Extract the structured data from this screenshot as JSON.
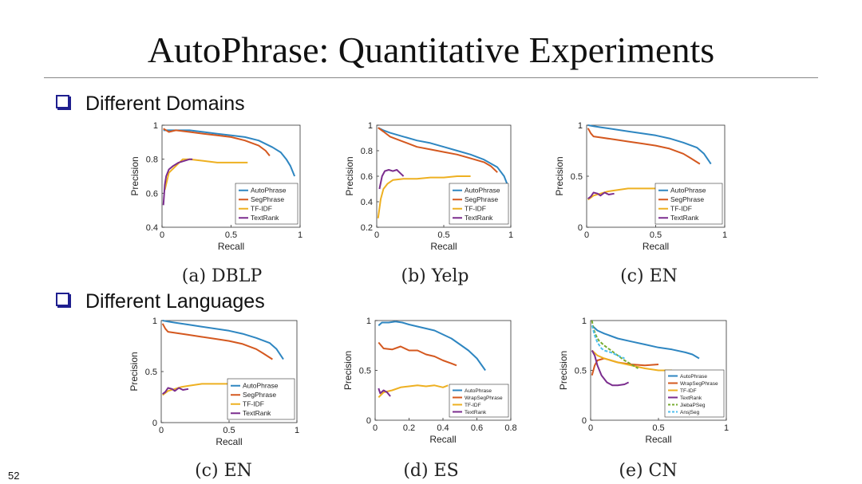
{
  "slide": {
    "title": "AutoPhrase: Quantitative Experiments",
    "section1": "Different Domains",
    "section2": "Different Languages",
    "page_number": "52"
  },
  "captions": [
    "(a) DBLP",
    "(b) Yelp",
    "(c) EN",
    "(c) EN",
    "(d) ES",
    "(e) CN"
  ],
  "colors": {
    "AutoPhrase": "#2e86c1",
    "SegPhrase": "#d4581f",
    "WrapSegPhrase": "#d4581f",
    "TF-IDF": "#eeb021",
    "TextRank": "#7b2d8e",
    "JiebaPSeg": "#77ac30",
    "AnsjSeg": "#4dbeee"
  },
  "chart_data": [
    {
      "type": "line",
      "xlabel": "Recall",
      "ylabel": "Precision",
      "xlim": [
        0,
        1
      ],
      "ylim": [
        0.4,
        1
      ],
      "xticks": [
        "0",
        "0.5",
        "1"
      ],
      "yticks": [
        "0.4",
        "0.6",
        "0.8",
        "1"
      ],
      "legend_position": "bottom-right",
      "series": [
        {
          "name": "AutoPhrase",
          "x": [
            0.01,
            0.1,
            0.2,
            0.3,
            0.4,
            0.5,
            0.6,
            0.7,
            0.8,
            0.86,
            0.9,
            0.93,
            0.96
          ],
          "y": [
            0.97,
            0.97,
            0.97,
            0.96,
            0.95,
            0.94,
            0.93,
            0.91,
            0.87,
            0.84,
            0.8,
            0.76,
            0.7
          ]
        },
        {
          "name": "SegPhrase",
          "x": [
            0.01,
            0.05,
            0.1,
            0.2,
            0.3,
            0.4,
            0.5,
            0.6,
            0.7,
            0.75,
            0.78
          ],
          "y": [
            0.98,
            0.96,
            0.97,
            0.96,
            0.95,
            0.94,
            0.93,
            0.91,
            0.88,
            0.85,
            0.82
          ]
        },
        {
          "name": "TF-IDF",
          "x": [
            0.02,
            0.05,
            0.1,
            0.15,
            0.2,
            0.3,
            0.4,
            0.5,
            0.6,
            0.62
          ],
          "y": [
            0.62,
            0.72,
            0.76,
            0.8,
            0.8,
            0.79,
            0.78,
            0.78,
            0.78,
            0.78
          ]
        },
        {
          "name": "TextRank",
          "x": [
            0.01,
            0.02,
            0.03,
            0.05,
            0.08,
            0.12,
            0.16,
            0.2,
            0.22
          ],
          "y": [
            0.53,
            0.65,
            0.7,
            0.74,
            0.76,
            0.78,
            0.79,
            0.8,
            0.8
          ]
        }
      ]
    },
    {
      "type": "line",
      "xlabel": "Recall",
      "ylabel": "Precision",
      "xlim": [
        0,
        1
      ],
      "ylim": [
        0.2,
        1
      ],
      "xticks": [
        "0",
        "0.5",
        "1"
      ],
      "yticks": [
        "0.2",
        "0.4",
        "0.6",
        "0.8",
        "1"
      ],
      "legend_position": "bottom-right",
      "series": [
        {
          "name": "AutoPhrase",
          "x": [
            0.01,
            0.05,
            0.1,
            0.2,
            0.3,
            0.4,
            0.5,
            0.6,
            0.7,
            0.8,
            0.9,
            0.95,
            0.98
          ],
          "y": [
            0.98,
            0.96,
            0.94,
            0.91,
            0.88,
            0.86,
            0.83,
            0.8,
            0.77,
            0.73,
            0.67,
            0.6,
            0.52
          ]
        },
        {
          "name": "SegPhrase",
          "x": [
            0.01,
            0.05,
            0.1,
            0.2,
            0.3,
            0.4,
            0.5,
            0.6,
            0.7,
            0.8,
            0.85,
            0.9
          ],
          "y": [
            0.98,
            0.95,
            0.91,
            0.87,
            0.83,
            0.81,
            0.79,
            0.77,
            0.74,
            0.71,
            0.68,
            0.63
          ]
        },
        {
          "name": "TF-IDF",
          "x": [
            0.01,
            0.03,
            0.05,
            0.08,
            0.12,
            0.2,
            0.3,
            0.4,
            0.5,
            0.6,
            0.7
          ],
          "y": [
            0.27,
            0.42,
            0.5,
            0.54,
            0.57,
            0.58,
            0.58,
            0.59,
            0.59,
            0.6,
            0.6
          ]
        },
        {
          "name": "TextRank",
          "x": [
            0.02,
            0.04,
            0.06,
            0.09,
            0.12,
            0.15,
            0.18,
            0.2
          ],
          "y": [
            0.5,
            0.6,
            0.64,
            0.65,
            0.64,
            0.65,
            0.62,
            0.6
          ]
        }
      ]
    },
    {
      "type": "line",
      "xlabel": "Recall",
      "ylabel": "Precision",
      "xlim": [
        0,
        1
      ],
      "ylim": [
        0,
        1
      ],
      "xticks": [
        "0",
        "0.5",
        "1"
      ],
      "yticks": [
        "0",
        "0.5",
        "1"
      ],
      "legend_position": "bottom-right",
      "series": [
        {
          "name": "AutoPhrase",
          "x": [
            0.01,
            0.05,
            0.1,
            0.2,
            0.3,
            0.4,
            0.5,
            0.6,
            0.7,
            0.8,
            0.85,
            0.9
          ],
          "y": [
            1.0,
            0.99,
            0.98,
            0.96,
            0.94,
            0.92,
            0.9,
            0.87,
            0.83,
            0.78,
            0.72,
            0.62
          ]
        },
        {
          "name": "SegPhrase",
          "x": [
            0.01,
            0.03,
            0.05,
            0.1,
            0.2,
            0.3,
            0.4,
            0.5,
            0.6,
            0.7,
            0.75,
            0.82
          ],
          "y": [
            0.97,
            0.92,
            0.89,
            0.88,
            0.86,
            0.84,
            0.82,
            0.8,
            0.77,
            0.72,
            0.68,
            0.62
          ]
        },
        {
          "name": "TF-IDF",
          "x": [
            0.01,
            0.05,
            0.1,
            0.15,
            0.2,
            0.3,
            0.4,
            0.5
          ],
          "y": [
            0.27,
            0.31,
            0.33,
            0.35,
            0.36,
            0.38,
            0.38,
            0.38
          ]
        },
        {
          "name": "TextRank",
          "x": [
            0.01,
            0.03,
            0.05,
            0.08,
            0.1,
            0.13,
            0.16,
            0.2
          ],
          "y": [
            0.28,
            0.3,
            0.34,
            0.33,
            0.31,
            0.34,
            0.32,
            0.33
          ]
        }
      ]
    },
    {
      "type": "line",
      "xlabel": "Recall",
      "ylabel": "Precision",
      "xlim": [
        0,
        1
      ],
      "ylim": [
        0,
        1
      ],
      "xticks": [
        "0",
        "0.5",
        "1"
      ],
      "yticks": [
        "0",
        "0.5",
        "1"
      ],
      "legend_position": "bottom-right",
      "series": [
        {
          "name": "AutoPhrase",
          "x": [
            0.01,
            0.05,
            0.1,
            0.2,
            0.3,
            0.4,
            0.5,
            0.6,
            0.7,
            0.8,
            0.85,
            0.9
          ],
          "y": [
            1.0,
            0.99,
            0.98,
            0.96,
            0.94,
            0.92,
            0.9,
            0.87,
            0.83,
            0.78,
            0.72,
            0.62
          ]
        },
        {
          "name": "SegPhrase",
          "x": [
            0.01,
            0.03,
            0.05,
            0.1,
            0.2,
            0.3,
            0.4,
            0.5,
            0.6,
            0.7,
            0.75,
            0.82
          ],
          "y": [
            0.97,
            0.92,
            0.89,
            0.88,
            0.86,
            0.84,
            0.82,
            0.8,
            0.77,
            0.72,
            0.68,
            0.62
          ]
        },
        {
          "name": "TF-IDF",
          "x": [
            0.01,
            0.05,
            0.1,
            0.15,
            0.2,
            0.3,
            0.4,
            0.5
          ],
          "y": [
            0.27,
            0.31,
            0.33,
            0.35,
            0.36,
            0.38,
            0.38,
            0.38
          ]
        },
        {
          "name": "TextRank",
          "x": [
            0.01,
            0.03,
            0.05,
            0.08,
            0.1,
            0.13,
            0.16,
            0.2
          ],
          "y": [
            0.28,
            0.3,
            0.34,
            0.33,
            0.31,
            0.34,
            0.32,
            0.33
          ]
        }
      ]
    },
    {
      "type": "line",
      "xlabel": "Recall",
      "ylabel": "Precision",
      "xlim": [
        0,
        0.8
      ],
      "ylim": [
        0,
        1
      ],
      "xticks": [
        "0",
        "0.2",
        "0.4",
        "0.6",
        "0.8"
      ],
      "yticks": [
        "0",
        "0.5",
        "1"
      ],
      "legend_position": "bottom-right",
      "series": [
        {
          "name": "AutoPhrase",
          "x": [
            0.02,
            0.04,
            0.08,
            0.12,
            0.16,
            0.2,
            0.25,
            0.3,
            0.35,
            0.4,
            0.45,
            0.5,
            0.55,
            0.6,
            0.65
          ],
          "y": [
            0.95,
            0.98,
            0.98,
            0.99,
            0.98,
            0.96,
            0.94,
            0.92,
            0.9,
            0.86,
            0.82,
            0.76,
            0.7,
            0.62,
            0.5
          ]
        },
        {
          "name": "WrapSegPhrase",
          "x": [
            0.02,
            0.05,
            0.1,
            0.15,
            0.2,
            0.25,
            0.3,
            0.35,
            0.4,
            0.45,
            0.48
          ],
          "y": [
            0.78,
            0.72,
            0.71,
            0.74,
            0.7,
            0.7,
            0.66,
            0.64,
            0.6,
            0.57,
            0.55
          ]
        },
        {
          "name": "TF-IDF",
          "x": [
            0.02,
            0.05,
            0.1,
            0.15,
            0.2,
            0.25,
            0.3,
            0.35,
            0.4,
            0.43
          ],
          "y": [
            0.23,
            0.28,
            0.3,
            0.33,
            0.34,
            0.35,
            0.34,
            0.35,
            0.33,
            0.35
          ]
        },
        {
          "name": "TextRank",
          "x": [
            0.02,
            0.03,
            0.05,
            0.07,
            0.09
          ],
          "y": [
            0.32,
            0.27,
            0.3,
            0.28,
            0.24
          ]
        }
      ]
    },
    {
      "type": "line",
      "xlabel": "Recall",
      "ylabel": "Precision",
      "xlim": [
        0,
        1
      ],
      "ylim": [
        0,
        1
      ],
      "xticks": [
        "0",
        "0.5",
        "1"
      ],
      "yticks": [
        "0",
        "0.5",
        "1"
      ],
      "legend_position": "bottom-right",
      "series": [
        {
          "name": "AutoPhrase",
          "x": [
            0.01,
            0.05,
            0.1,
            0.2,
            0.3,
            0.4,
            0.5,
            0.6,
            0.7,
            0.75,
            0.8
          ],
          "y": [
            0.95,
            0.9,
            0.87,
            0.82,
            0.79,
            0.76,
            0.73,
            0.71,
            0.68,
            0.66,
            0.62
          ]
        },
        {
          "name": "WrapSegPhrase",
          "x": [
            0.01,
            0.03,
            0.05,
            0.1,
            0.15,
            0.2,
            0.3,
            0.4,
            0.5
          ],
          "y": [
            0.45,
            0.55,
            0.6,
            0.62,
            0.6,
            0.58,
            0.56,
            0.55,
            0.56
          ]
        },
        {
          "name": "TF-IDF",
          "x": [
            0.01,
            0.05,
            0.1,
            0.2,
            0.3,
            0.4,
            0.5,
            0.6
          ],
          "y": [
            0.7,
            0.65,
            0.62,
            0.58,
            0.55,
            0.52,
            0.5,
            0.5
          ]
        },
        {
          "name": "TextRank",
          "x": [
            0.01,
            0.03,
            0.05,
            0.08,
            0.12,
            0.16,
            0.2,
            0.25,
            0.28
          ],
          "y": [
            0.7,
            0.65,
            0.55,
            0.45,
            0.38,
            0.35,
            0.35,
            0.36,
            0.38
          ]
        },
        {
          "name": "JiebaPSeg",
          "x": [
            0.01,
            0.02,
            0.04,
            0.06,
            0.1,
            0.15,
            0.2,
            0.25,
            0.3,
            0.35
          ],
          "y": [
            1.0,
            0.92,
            0.85,
            0.8,
            0.75,
            0.7,
            0.65,
            0.6,
            0.56,
            0.52
          ]
        },
        {
          "name": "AnsjSeg",
          "x": [
            0.01,
            0.03,
            0.05,
            0.08,
            0.1,
            0.15,
            0.2,
            0.25
          ],
          "y": [
            0.95,
            0.85,
            0.78,
            0.72,
            0.7,
            0.68,
            0.65,
            0.62
          ]
        }
      ]
    }
  ]
}
